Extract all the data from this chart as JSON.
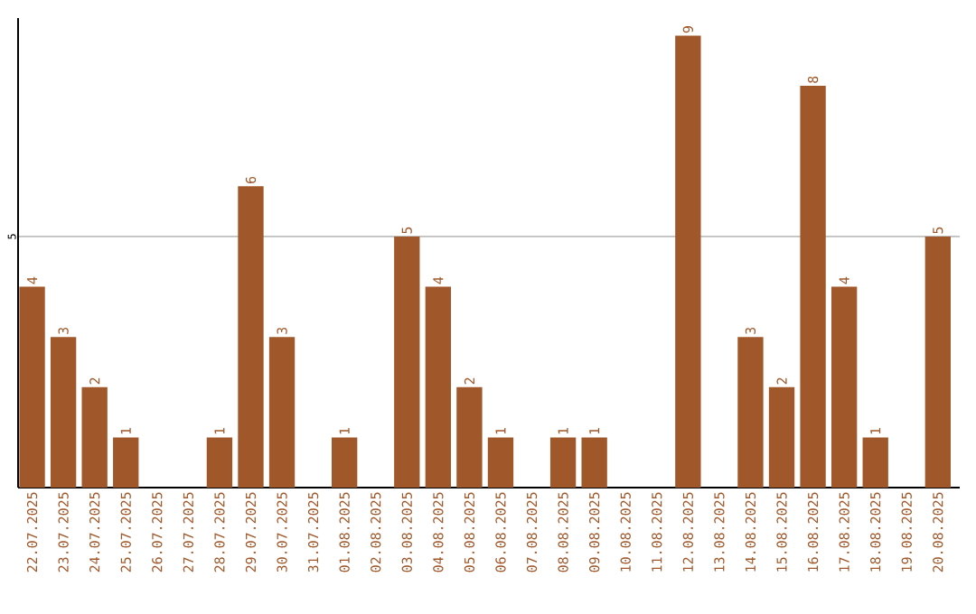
{
  "chart_data": {
    "type": "bar",
    "categories": [
      "22.07.2025",
      "23.07.2025",
      "24.07.2025",
      "25.07.2025",
      "26.07.2025",
      "27.07.2025",
      "28.07.2025",
      "29.07.2025",
      "30.07.2025",
      "31.07.2025",
      "01.08.2025",
      "02.08.2025",
      "03.08.2025",
      "04.08.2025",
      "05.08.2025",
      "06.08.2025",
      "07.08.2025",
      "08.08.2025",
      "09.08.2025",
      "10.08.2025",
      "11.08.2025",
      "12.08.2025",
      "13.08.2025",
      "14.08.2025",
      "15.08.2025",
      "16.08.2025",
      "17.08.2025",
      "18.08.2025",
      "19.08.2025",
      "20.08.2025"
    ],
    "values": [
      4,
      3,
      2,
      1,
      0,
      0,
      1,
      6,
      3,
      0,
      1,
      0,
      5,
      4,
      2,
      1,
      0,
      1,
      1,
      0,
      0,
      9,
      0,
      3,
      2,
      8,
      4,
      1,
      0,
      5
    ],
    "value_labels": [
      "4",
      "3",
      "2",
      "1",
      null,
      null,
      "1",
      "6",
      "3",
      null,
      "1",
      null,
      "5",
      "4",
      "2",
      "1",
      null,
      "1",
      "1",
      null,
      null,
      "9",
      null,
      "3",
      "2",
      "8",
      "4",
      "1",
      null,
      "5"
    ],
    "color": "#a0582a",
    "ylim": [
      0,
      9.35
    ],
    "yticks": [
      5
    ],
    "grid": "y"
  }
}
